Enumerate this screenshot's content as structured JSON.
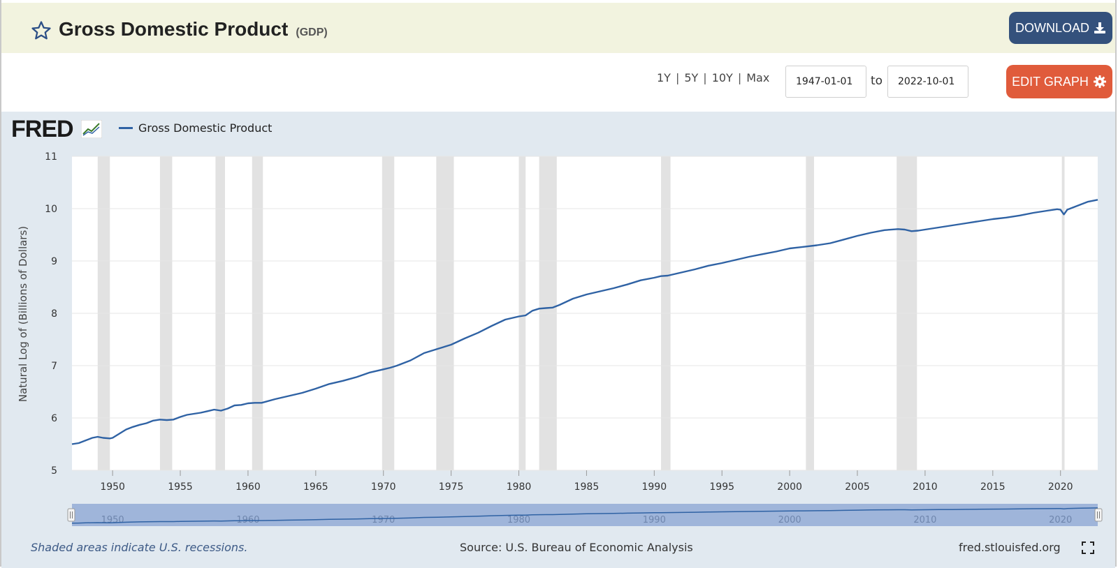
{
  "header": {
    "title": "Gross Domestic Product",
    "series_code": "(GDP)",
    "download_label": "DOWNLOAD"
  },
  "controls": {
    "ranges": [
      "1Y",
      "5Y",
      "10Y",
      "Max"
    ],
    "start_date": "1947-01-01",
    "to_label": "to",
    "end_date": "2022-10-01",
    "edit_label": "EDIT GRAPH"
  },
  "colors": {
    "header_bg": "#f2f3df",
    "download_bg": "#34517c",
    "edit_bg": "#e05b3b",
    "panel_bg": "#e1e9f0",
    "series": "#2f62a4",
    "recession": "#e2e2e2"
  },
  "chart_data": {
    "type": "line",
    "logo_text": "FRED",
    "legend": [
      "Gross Domestic Product"
    ],
    "ylabel": "Natural Log of (Billions of Dollars)",
    "xlabel": "",
    "ylim": [
      5,
      11
    ],
    "y_ticks": [
      5,
      6,
      7,
      8,
      9,
      10,
      11
    ],
    "xlim": [
      1947.0,
      2022.75
    ],
    "x_ticks": [
      1950,
      1955,
      1960,
      1965,
      1970,
      1975,
      1980,
      1985,
      1990,
      1995,
      2000,
      2005,
      2010,
      2015,
      2020
    ],
    "navigator_ticks": [
      1950,
      1960,
      1970,
      1980,
      1990,
      2000,
      2010,
      2020
    ],
    "grid": true,
    "recessions": [
      [
        1948.9,
        1949.8
      ],
      [
        1953.5,
        1954.4
      ],
      [
        1957.6,
        1958.3
      ],
      [
        1960.3,
        1961.1
      ],
      [
        1969.9,
        1970.8
      ],
      [
        1973.9,
        1975.2
      ],
      [
        1980.0,
        1980.5
      ],
      [
        1981.5,
        1982.8
      ],
      [
        1990.5,
        1991.2
      ],
      [
        2001.2,
        2001.8
      ],
      [
        2007.9,
        2009.4
      ],
      [
        2020.1,
        2020.3
      ]
    ],
    "series": [
      {
        "name": "Gross Domestic Product",
        "x": [
          1947.0,
          1947.5,
          1948.0,
          1948.5,
          1948.9,
          1949.3,
          1949.8,
          1950.0,
          1950.5,
          1951.0,
          1951.5,
          1952.0,
          1952.5,
          1953.0,
          1953.5,
          1954.0,
          1954.5,
          1955.0,
          1955.5,
          1956.0,
          1956.5,
          1957.0,
          1957.5,
          1958.0,
          1958.5,
          1959.0,
          1959.5,
          1960.0,
          1960.5,
          1961.0,
          1962.0,
          1963.0,
          1964.0,
          1965.0,
          1966.0,
          1967.0,
          1968.0,
          1969.0,
          1970.0,
          1970.5,
          1971.0,
          1972.0,
          1973.0,
          1974.0,
          1975.0,
          1976.0,
          1977.0,
          1978.0,
          1979.0,
          1980.0,
          1980.5,
          1981.0,
          1981.5,
          1982.0,
          1982.5,
          1983.0,
          1984.0,
          1985.0,
          1986.0,
          1987.0,
          1988.0,
          1989.0,
          1990.0,
          1990.5,
          1991.0,
          1992.0,
          1993.0,
          1994.0,
          1995.0,
          1996.0,
          1997.0,
          1998.0,
          1999.0,
          2000.0,
          2001.0,
          2002.0,
          2003.0,
          2004.0,
          2005.0,
          2006.0,
          2007.0,
          2008.0,
          2008.5,
          2009.0,
          2009.5,
          2010.0,
          2011.0,
          2012.0,
          2013.0,
          2014.0,
          2015.0,
          2016.0,
          2017.0,
          2018.0,
          2019.0,
          2019.75,
          2020.0,
          2020.25,
          2020.5,
          2021.0,
          2021.5,
          2022.0,
          2022.75
        ],
        "values": [
          5.5,
          5.52,
          5.57,
          5.62,
          5.64,
          5.62,
          5.61,
          5.62,
          5.7,
          5.78,
          5.83,
          5.87,
          5.9,
          5.95,
          5.97,
          5.96,
          5.97,
          6.02,
          6.06,
          6.08,
          6.1,
          6.13,
          6.16,
          6.14,
          6.18,
          6.24,
          6.25,
          6.28,
          6.29,
          6.29,
          6.36,
          6.42,
          6.48,
          6.56,
          6.65,
          6.71,
          6.78,
          6.87,
          6.93,
          6.96,
          7.0,
          7.1,
          7.24,
          7.32,
          7.4,
          7.52,
          7.63,
          7.76,
          7.88,
          7.94,
          7.96,
          8.05,
          8.09,
          8.1,
          8.11,
          8.16,
          8.28,
          8.36,
          8.42,
          8.48,
          8.55,
          8.63,
          8.68,
          8.71,
          8.72,
          8.78,
          8.84,
          8.91,
          8.96,
          9.02,
          9.08,
          9.13,
          9.18,
          9.24,
          9.27,
          9.3,
          9.34,
          9.41,
          9.48,
          9.54,
          9.59,
          9.61,
          9.6,
          9.57,
          9.58,
          9.6,
          9.64,
          9.68,
          9.72,
          9.76,
          9.8,
          9.83,
          9.87,
          9.92,
          9.96,
          9.99,
          9.98,
          9.89,
          9.98,
          10.03,
          10.08,
          10.13,
          10.17
        ]
      }
    ]
  },
  "footer": {
    "note": "Shaded areas indicate U.S. recessions.",
    "source": "Source: U.S. Bureau of Economic Analysis",
    "site": "fred.stlouisfed.org"
  }
}
